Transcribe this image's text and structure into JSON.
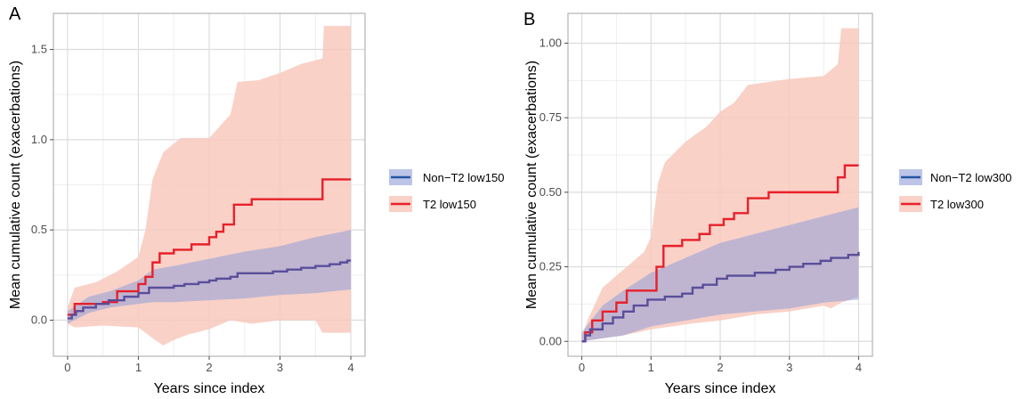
{
  "chart_data": [
    {
      "type": "line",
      "panel_label": "A",
      "xlabel": "Years since index",
      "ylabel": "Mean cumulative count (exacerbations)",
      "xlim": [
        -0.2,
        4.2
      ],
      "ylim": [
        -0.2,
        1.7
      ],
      "xticks": [
        0,
        1,
        2,
        3,
        4
      ],
      "yticks": [
        0.0,
        0.5,
        1.0,
        1.5
      ],
      "ytick_labels": [
        "0.0",
        "0.5",
        "1.0",
        "1.5"
      ],
      "grid": true,
      "legend_position": "right",
      "series": [
        {
          "name": "Non−T2 low150",
          "color": "#2255a4",
          "fill": "#8f9fd9",
          "step": [
            [
              0,
              0.01
            ],
            [
              0.06,
              0.03
            ],
            [
              0.12,
              0.05
            ],
            [
              0.22,
              0.07
            ],
            [
              0.4,
              0.09
            ],
            [
              0.58,
              0.11
            ],
            [
              0.8,
              0.13
            ],
            [
              1.0,
              0.15
            ],
            [
              1.15,
              0.18
            ],
            [
              1.5,
              0.19
            ],
            [
              1.65,
              0.2
            ],
            [
              1.85,
              0.21
            ],
            [
              2.0,
              0.22
            ],
            [
              2.1,
              0.23
            ],
            [
              2.3,
              0.24
            ],
            [
              2.4,
              0.26
            ],
            [
              2.7,
              0.26
            ],
            [
              2.9,
              0.27
            ],
            [
              3.1,
              0.28
            ],
            [
              3.3,
              0.29
            ],
            [
              3.5,
              0.3
            ],
            [
              3.7,
              0.31
            ],
            [
              3.85,
              0.32
            ],
            [
              3.95,
              0.33
            ],
            [
              4.0,
              0.33
            ]
          ],
          "ci_upper": [
            [
              0,
              0.05
            ],
            [
              0.3,
              0.13
            ],
            [
              0.6,
              0.16
            ],
            [
              1.0,
              0.22
            ],
            [
              1.2,
              0.28
            ],
            [
              1.5,
              0.3
            ],
            [
              2.0,
              0.34
            ],
            [
              2.5,
              0.38
            ],
            [
              3.0,
              0.41
            ],
            [
              3.5,
              0.46
            ],
            [
              4.0,
              0.5
            ]
          ],
          "ci_lower": [
            [
              0,
              -0.02
            ],
            [
              0.3,
              0.04
            ],
            [
              0.6,
              0.07
            ],
            [
              1.0,
              0.09
            ],
            [
              1.2,
              0.1
            ],
            [
              1.5,
              0.1
            ],
            [
              2.0,
              0.11
            ],
            [
              2.5,
              0.12
            ],
            [
              3.0,
              0.14
            ],
            [
              3.5,
              0.15
            ],
            [
              4.0,
              0.17
            ]
          ]
        },
        {
          "name": "T2 low150",
          "color": "#e8202a",
          "fill": "#f8c9bd",
          "step": [
            [
              0,
              0.03
            ],
            [
              0.1,
              0.09
            ],
            [
              0.5,
              0.1
            ],
            [
              0.7,
              0.16
            ],
            [
              1.0,
              0.2
            ],
            [
              1.1,
              0.24
            ],
            [
              1.2,
              0.32
            ],
            [
              1.3,
              0.37
            ],
            [
              1.5,
              0.39
            ],
            [
              1.75,
              0.42
            ],
            [
              2.0,
              0.46
            ],
            [
              2.1,
              0.49
            ],
            [
              2.2,
              0.53
            ],
            [
              2.35,
              0.64
            ],
            [
              2.6,
              0.67
            ],
            [
              3.0,
              0.67
            ],
            [
              3.2,
              0.67
            ],
            [
              3.6,
              0.78
            ],
            [
              4.0,
              0.78
            ]
          ],
          "ci_upper": [
            [
              0,
              0.07
            ],
            [
              0.1,
              0.18
            ],
            [
              0.4,
              0.21
            ],
            [
              0.7,
              0.27
            ],
            [
              1.0,
              0.35
            ],
            [
              1.1,
              0.5
            ],
            [
              1.2,
              0.78
            ],
            [
              1.35,
              0.93
            ],
            [
              1.6,
              1.01
            ],
            [
              2.0,
              1.01
            ],
            [
              2.3,
              1.14
            ],
            [
              2.4,
              1.32
            ],
            [
              2.7,
              1.33
            ],
            [
              3.0,
              1.37
            ],
            [
              3.3,
              1.42
            ],
            [
              3.6,
              1.45
            ],
            [
              3.62,
              1.63
            ],
            [
              4.0,
              1.63
            ]
          ],
          "ci_lower": [
            [
              0,
              -0.02
            ],
            [
              0.1,
              -0.04
            ],
            [
              0.5,
              -0.03
            ],
            [
              1.0,
              -0.04
            ],
            [
              1.2,
              -0.1
            ],
            [
              1.35,
              -0.14
            ],
            [
              1.5,
              -0.11
            ],
            [
              1.7,
              -0.08
            ],
            [
              2.0,
              -0.05
            ],
            [
              2.3,
              0.0
            ],
            [
              2.6,
              -0.02
            ],
            [
              3.0,
              0.0
            ],
            [
              3.5,
              0.0
            ],
            [
              3.6,
              -0.07
            ],
            [
              4.0,
              -0.07
            ]
          ]
        }
      ]
    },
    {
      "type": "line",
      "panel_label": "B",
      "xlabel": "Years since index",
      "ylabel": "Mean cumulative count (exacerbations)",
      "xlim": [
        -0.2,
        4.2
      ],
      "ylim": [
        -0.05,
        1.1
      ],
      "xticks": [
        0,
        1,
        2,
        3,
        4
      ],
      "yticks": [
        0.0,
        0.25,
        0.5,
        0.75,
        1.0
      ],
      "ytick_labels": [
        "0.00",
        "0.25",
        "0.50",
        "0.75",
        "1.00"
      ],
      "grid": true,
      "legend_position": "right",
      "series": [
        {
          "name": "Non−T2 low300",
          "color": "#2255a4",
          "fill": "#8f9fd9",
          "step": [
            [
              0,
              0.0
            ],
            [
              0.05,
              0.02
            ],
            [
              0.12,
              0.04
            ],
            [
              0.3,
              0.06
            ],
            [
              0.45,
              0.08
            ],
            [
              0.6,
              0.1
            ],
            [
              0.75,
              0.12
            ],
            [
              0.95,
              0.14
            ],
            [
              1.2,
              0.15
            ],
            [
              1.45,
              0.16
            ],
            [
              1.6,
              0.18
            ],
            [
              1.75,
              0.19
            ],
            [
              1.95,
              0.21
            ],
            [
              2.1,
              0.22
            ],
            [
              2.5,
              0.23
            ],
            [
              2.8,
              0.24
            ],
            [
              3.0,
              0.25
            ],
            [
              3.2,
              0.26
            ],
            [
              3.45,
              0.27
            ],
            [
              3.6,
              0.28
            ],
            [
              3.85,
              0.29
            ],
            [
              4.0,
              0.3
            ]
          ],
          "ci_upper": [
            [
              0,
              0.03
            ],
            [
              0.3,
              0.12
            ],
            [
              0.6,
              0.17
            ],
            [
              1.0,
              0.23
            ],
            [
              1.5,
              0.28
            ],
            [
              2.0,
              0.33
            ],
            [
              2.5,
              0.36
            ],
            [
              3.0,
              0.39
            ],
            [
              3.5,
              0.42
            ],
            [
              4.0,
              0.45
            ]
          ],
          "ci_lower": [
            [
              0,
              0.0
            ],
            [
              0.3,
              0.01
            ],
            [
              0.6,
              0.02
            ],
            [
              1.0,
              0.05
            ],
            [
              1.5,
              0.07
            ],
            [
              2.0,
              0.09
            ],
            [
              2.5,
              0.1
            ],
            [
              3.0,
              0.11
            ],
            [
              3.5,
              0.13
            ],
            [
              4.0,
              0.14
            ]
          ]
        },
        {
          "name": "T2 low300",
          "color": "#e8202a",
          "fill": "#f8c9bd",
          "step": [
            [
              0,
              0.0
            ],
            [
              0.05,
              0.03
            ],
            [
              0.15,
              0.07
            ],
            [
              0.3,
              0.1
            ],
            [
              0.5,
              0.13
            ],
            [
              0.65,
              0.17
            ],
            [
              1.0,
              0.17
            ],
            [
              1.08,
              0.25
            ],
            [
              1.18,
              0.32
            ],
            [
              1.45,
              0.34
            ],
            [
              1.7,
              0.36
            ],
            [
              1.85,
              0.39
            ],
            [
              2.05,
              0.41
            ],
            [
              2.2,
              0.43
            ],
            [
              2.4,
              0.48
            ],
            [
              2.7,
              0.5
            ],
            [
              3.0,
              0.5
            ],
            [
              3.2,
              0.5
            ],
            [
              3.6,
              0.5
            ],
            [
              3.7,
              0.55
            ],
            [
              3.8,
              0.59
            ],
            [
              4.0,
              0.59
            ]
          ],
          "ci_upper": [
            [
              0,
              0.02
            ],
            [
              0.1,
              0.08
            ],
            [
              0.3,
              0.18
            ],
            [
              0.6,
              0.24
            ],
            [
              0.9,
              0.3
            ],
            [
              1.0,
              0.35
            ],
            [
              1.1,
              0.53
            ],
            [
              1.2,
              0.6
            ],
            [
              1.5,
              0.67
            ],
            [
              1.8,
              0.72
            ],
            [
              2.0,
              0.77
            ],
            [
              2.2,
              0.8
            ],
            [
              2.4,
              0.86
            ],
            [
              2.7,
              0.87
            ],
            [
              3.0,
              0.88
            ],
            [
              3.5,
              0.89
            ],
            [
              3.7,
              0.93
            ],
            [
              3.75,
              1.05
            ],
            [
              4.0,
              1.05
            ]
          ],
          "ci_lower": [
            [
              0,
              0.0
            ],
            [
              0.3,
              0.01
            ],
            [
              0.6,
              0.02
            ],
            [
              1.0,
              0.04
            ],
            [
              1.3,
              0.05
            ],
            [
              1.6,
              0.06
            ],
            [
              2.0,
              0.07
            ],
            [
              2.5,
              0.09
            ],
            [
              3.0,
              0.1
            ],
            [
              3.5,
              0.12
            ],
            [
              3.6,
              0.11
            ],
            [
              3.75,
              0.13
            ],
            [
              4.0,
              0.15
            ]
          ]
        }
      ]
    }
  ]
}
